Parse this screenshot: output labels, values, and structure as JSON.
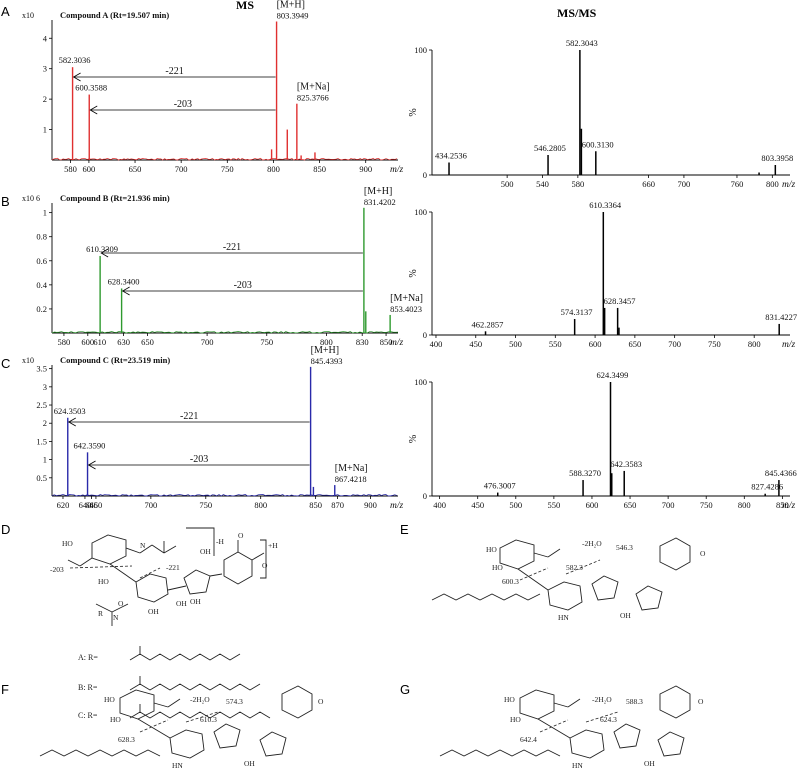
{
  "figure": {
    "ms_heading": "MS",
    "msms_heading": "MS/MS",
    "panel_letters": [
      "A",
      "B",
      "C",
      "D",
      "E",
      "F",
      "G"
    ],
    "mz_label": "m/z",
    "pct_label": "%",
    "losses": [
      "-221",
      "-203"
    ],
    "ion_labels": {
      "mh": "[M+H]",
      "mna": "[M+Na]"
    },
    "plus_h": "+H",
    "minus_h": "-H",
    "r_labels": [
      "A: R=",
      "B: R=",
      "C: R="
    ],
    "structure_notes": {
      "D": [
        "-221",
        "-203"
      ],
      "E": [
        "-2H₂O",
        "546.3",
        "582.3",
        "600.3"
      ],
      "F": [
        "-2H₂O",
        "574.3",
        "610.3",
        "628.3"
      ],
      "G": [
        "-2H₂O",
        "588.3",
        "624.3",
        "642.4"
      ]
    }
  },
  "chart_data": [
    {
      "panel": "A-MS",
      "type": "line",
      "color": "#e03030",
      "title": "Compound  A  (Rt=19.507   min)",
      "yscale_label": "x10",
      "xlabel": "m/z",
      "xlim": [
        560,
        935
      ],
      "ylim": [
        0,
        4.6
      ],
      "xticks": [
        580,
        600,
        650,
        700,
        750,
        800,
        850,
        900
      ],
      "yticks": [
        1,
        2,
        3,
        4
      ],
      "peaks": [
        [
          582.3036,
          3.05
        ],
        [
          600.3588,
          2.15
        ],
        [
          803.3949,
          4.55
        ],
        [
          825.3766,
          1.85
        ],
        [
          815,
          1.0
        ],
        [
          798,
          0.35
        ],
        [
          845,
          0.25
        ],
        [
          830,
          0.15
        ]
      ],
      "annotations": [
        {
          "label": "[M+H]",
          "value": "803.3949",
          "x": 803.3949
        },
        {
          "label": "[M+Na]",
          "value": "825.3766",
          "x": 825.3766
        },
        {
          "value": "582.3036",
          "x": 582.3036
        },
        {
          "value": "600.3588",
          "x": 600.3588
        }
      ]
    },
    {
      "panel": "A-MSMS",
      "type": "bar",
      "color": "#000000",
      "xlabel": "m/z",
      "ylabel": "%",
      "xlim": [
        415,
        820
      ],
      "ylim": [
        0,
        100
      ],
      "xticks": [
        500,
        540,
        580,
        660,
        700,
        760,
        800
      ],
      "yticks": [
        0,
        100
      ],
      "peaks": [
        [
          434.2536,
          10
        ],
        [
          546.2805,
          16
        ],
        [
          582.3043,
          100
        ],
        [
          584,
          37
        ],
        [
          600.313,
          19
        ],
        [
          803.3958,
          8
        ],
        [
          785,
          2
        ]
      ],
      "annotations": [
        {
          "value": "434.2536",
          "x": 434.2536
        },
        {
          "value": "546.2805",
          "x": 546.2805
        },
        {
          "value": "582.3043",
          "x": 582.3043
        },
        {
          "value": "600.3130",
          "x": 600.313
        },
        {
          "value": "803.3958",
          "x": 803.3958
        }
      ]
    },
    {
      "panel": "B-MS",
      "type": "line",
      "color": "#2e9a2e",
      "title": "Compound  B  (Rt=21.936 min)",
      "yscale_label": "x10 6",
      "xlabel": "m/z",
      "xlim": [
        570,
        860
      ],
      "ylim": [
        0,
        1.08
      ],
      "xticks": [
        580,
        600,
        610,
        630,
        650,
        700,
        750,
        800,
        830,
        850
      ],
      "yticks": [
        0.2,
        0.4,
        0.6,
        0.8,
        1
      ],
      "peaks": [
        [
          610.3309,
          0.64
        ],
        [
          628.34,
          0.37
        ],
        [
          831.4202,
          1.04
        ],
        [
          853.4023,
          0.15
        ],
        [
          833,
          0.18
        ]
      ],
      "annotations": [
        {
          "label": "[M+H]",
          "value": "831.4202",
          "x": 831.4202
        },
        {
          "label": "[M+Na]",
          "value": "853.4023",
          "x": 853.4023
        },
        {
          "value": "610.3309",
          "x": 610.3309
        },
        {
          "value": "628.3400",
          "x": 628.34
        }
      ]
    },
    {
      "panel": "B-MSMS",
      "type": "bar",
      "color": "#000000",
      "xlabel": "m/z",
      "ylabel": "%",
      "xlim": [
        395,
        845
      ],
      "ylim": [
        0,
        100
      ],
      "xticks": [
        400,
        450,
        500,
        550,
        600,
        650,
        700,
        750,
        800
      ],
      "yticks": [
        0,
        100
      ],
      "peaks": [
        [
          462.2857,
          3
        ],
        [
          574.3137,
          13
        ],
        [
          610.3364,
          100
        ],
        [
          612,
          22
        ],
        [
          628.3457,
          22
        ],
        [
          630,
          6
        ],
        [
          831.4227,
          9
        ]
      ],
      "annotations": [
        {
          "value": "462.2857",
          "x": 462.2857
        },
        {
          "value": "574.3137",
          "x": 574.3137
        },
        {
          "value": "610.3364",
          "x": 610.3364
        },
        {
          "value": "628.3457",
          "x": 628.3457
        },
        {
          "value": "831.4227",
          "x": 831.4227
        }
      ]
    },
    {
      "panel": "C-MS",
      "type": "line",
      "color": "#2a2aaa",
      "title": "Compound  C  (Rt=23.519 min)",
      "yscale_label": "x10",
      "xlabel": "m/z",
      "xlim": [
        610,
        925
      ],
      "ylim": [
        0,
        3.6
      ],
      "xticks": [
        620,
        640,
        646,
        650,
        700,
        750,
        800,
        850,
        870,
        900
      ],
      "yticks": [
        0.5,
        1,
        1.5,
        2,
        2.5,
        3,
        3.5
      ],
      "peaks": [
        [
          624.3503,
          2.15
        ],
        [
          642.359,
          1.2
        ],
        [
          845.4393,
          3.55
        ],
        [
          867.4218,
          0.3
        ],
        [
          848,
          0.25
        ]
      ],
      "annotations": [
        {
          "label": "[M+H]",
          "value": "845.4393",
          "x": 845.4393
        },
        {
          "label": "[M+Na]",
          "value": "867.4218",
          "x": 867.4218
        },
        {
          "value": "624.3503",
          "x": 624.3503
        },
        {
          "value": "642.3590",
          "x": 642.359
        }
      ]
    },
    {
      "panel": "C-MSMS",
      "type": "bar",
      "color": "#000000",
      "xlabel": "m/z",
      "ylabel": "%",
      "xlim": [
        390,
        860
      ],
      "ylim": [
        0,
        100
      ],
      "xticks": [
        400,
        450,
        500,
        550,
        600,
        650,
        700,
        750,
        800,
        850
      ],
      "yticks": [
        0,
        100
      ],
      "peaks": [
        [
          476.3007,
          3
        ],
        [
          588.327,
          14
        ],
        [
          624.3499,
          100
        ],
        [
          626,
          20
        ],
        [
          642.3583,
          22
        ],
        [
          827.4286,
          2
        ],
        [
          845.4366,
          14
        ]
      ],
      "annotations": [
        {
          "value": "476.3007",
          "x": 476.3007
        },
        {
          "value": "588.3270",
          "x": 588.327
        },
        {
          "value": "624.3499",
          "x": 624.3499
        },
        {
          "value": "642.3583",
          "x": 642.3583
        },
        {
          "value": "827.4286",
          "x": 827.4286
        },
        {
          "value": "845.4366",
          "x": 845.4366
        }
      ]
    }
  ]
}
